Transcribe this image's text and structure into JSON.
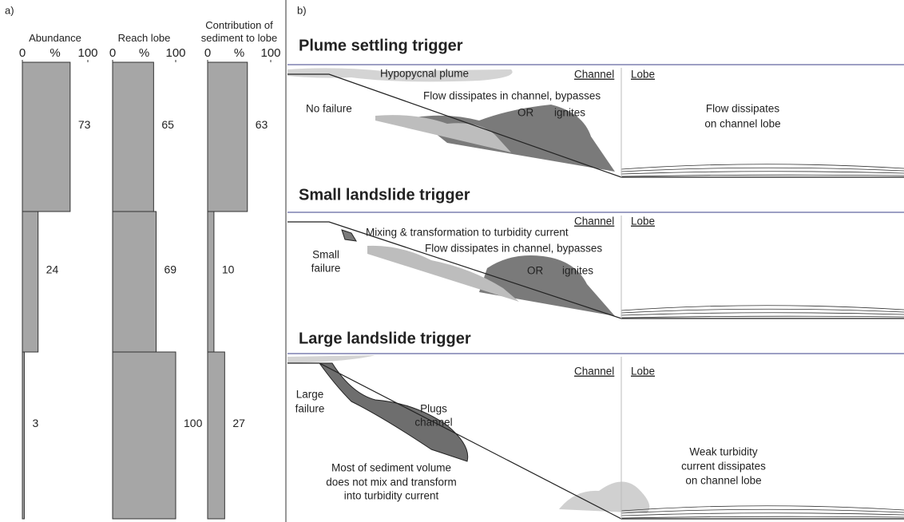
{
  "panel_labels": [
    "a)",
    "b)"
  ],
  "chart_data": [
    {
      "type": "bar",
      "orientation": "horizontal",
      "title": "Abundance",
      "values": [
        73,
        24,
        3
      ],
      "color": "#a6a6a6",
      "xlim": [
        0,
        100
      ],
      "xticks": [
        0,
        100
      ],
      "xlabel": "%"
    },
    {
      "type": "bar",
      "orientation": "horizontal",
      "title": "Reach lobe",
      "values": [
        65,
        69,
        100
      ],
      "color": "#a6a6a6",
      "xlim": [
        0,
        100
      ],
      "xticks": [
        0,
        100
      ],
      "xlabel": "%"
    },
    {
      "type": "bar",
      "orientation": "horizontal",
      "title": "Contribution of sediment to lobe",
      "values": [
        63,
        10,
        27
      ],
      "color": "#a6a6a6",
      "xlim": [
        0,
        100
      ],
      "xticks": [
        0,
        100
      ],
      "xlabel": "%"
    }
  ],
  "diagram": {
    "panels": [
      {
        "title": "Plume settling trigger",
        "labels": [
          "Hypopycnal plume",
          "Channel",
          "Lobe",
          "Flow dissipates in channel, bypasses",
          "No failure",
          "OR",
          "ignites",
          "Flow dissipates",
          "on channel lobe"
        ]
      },
      {
        "title": "Small landslide trigger",
        "labels": [
          "Channel",
          "Lobe",
          "Mixing & transformation to turbidity current",
          "Flow dissipates in channel, bypasses",
          "Small",
          "failure",
          "OR",
          "ignites"
        ]
      },
      {
        "title": "Large landslide trigger",
        "labels": [
          "Channel",
          "Lobe",
          "Large",
          "failure",
          "Plugs",
          "channel",
          "Most of sediment volume",
          "does not mix and transform",
          "into turbidity current",
          "Weak turbidity",
          "current dissipates",
          "on channel lobe"
        ]
      }
    ]
  }
}
